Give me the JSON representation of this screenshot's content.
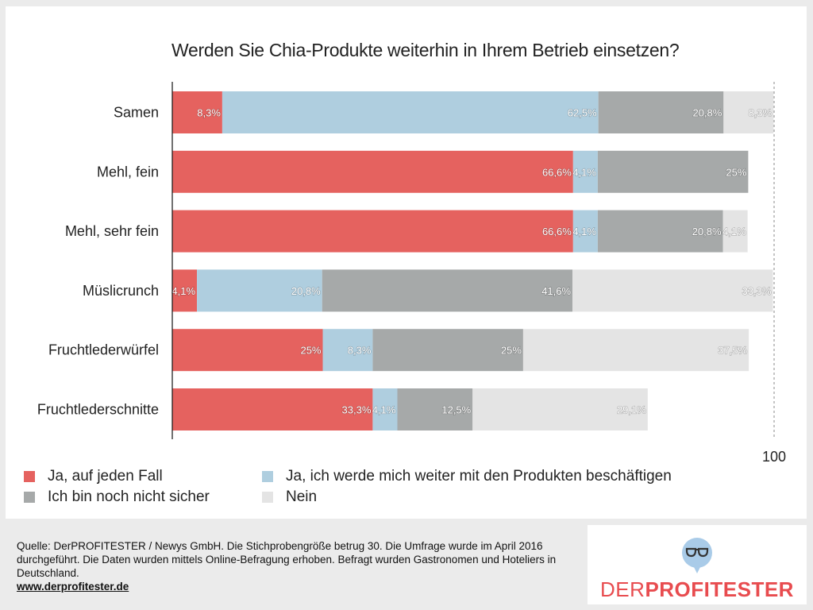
{
  "chart_data": {
    "type": "bar",
    "orientation": "horizontal",
    "stacked": true,
    "title": "Werden Sie Chia-Produkte weiterhin in Ihrem Betrieb einsetzen?",
    "xlim": [
      0,
      100
    ],
    "x_tick_labels": [
      "100"
    ],
    "categories": [
      "Samen",
      "Mehl, fein",
      "Mehl, sehr fein",
      "Müslicrunch",
      "Fruchtlederwürfel",
      "Fruchtlederschnitte"
    ],
    "series": [
      {
        "name": "Ja, auf jeden Fall",
        "color": "#e5625f",
        "values": [
          8.3,
          66.6,
          66.6,
          4.1,
          25,
          33.3
        ],
        "labels": [
          "8,3%",
          "66,6%",
          "66,6%",
          "4,1%",
          "25%",
          "33,3%"
        ]
      },
      {
        "name": "Ja, ich werde mich weiter mit den Produkten beschäftigen",
        "color": "#afcedf",
        "values": [
          62.5,
          4.1,
          4.1,
          20.8,
          8.3,
          4.1
        ],
        "labels": [
          "62,5%",
          "4,1%",
          "4,1%",
          "20,8%",
          "8,3%",
          "4,1%"
        ]
      },
      {
        "name": "Ich bin noch nicht sicher",
        "color": "#a6a9a9",
        "values": [
          20.8,
          25,
          20.8,
          41.6,
          25,
          12.5
        ],
        "labels": [
          "20,8%",
          "25%",
          "20,8%",
          "41,6%",
          "25%",
          "12,5%"
        ]
      },
      {
        "name": "Nein",
        "color": "#e4e4e4",
        "values": [
          8.3,
          0,
          4.1,
          33.3,
          37.5,
          29.1
        ],
        "labels": [
          "8,3%",
          "",
          "4,1%",
          "33,3%",
          "37,5%",
          "29,1%"
        ]
      }
    ],
    "legend_position": "bottom",
    "grid": false
  },
  "footer": {
    "source_text": "Quelle: DerPROFITESTER / Newys GmbH. Die Stichprobengröße betrug 30. Die Umfrage wurde im April 2016 durchgeführt. Die Daten wurden mittels Online-Befragung erhoben. Befragt wurden Gastronomen und Hoteliers in Deutschland.",
    "link": "www.derprofitester.de"
  },
  "logo": {
    "text_thin": "DER",
    "text_bold": "PROFITESTER",
    "bubble_color": "#a9cbe8",
    "brand_color": "#e84c4f",
    "icon": "glasses-icon"
  }
}
